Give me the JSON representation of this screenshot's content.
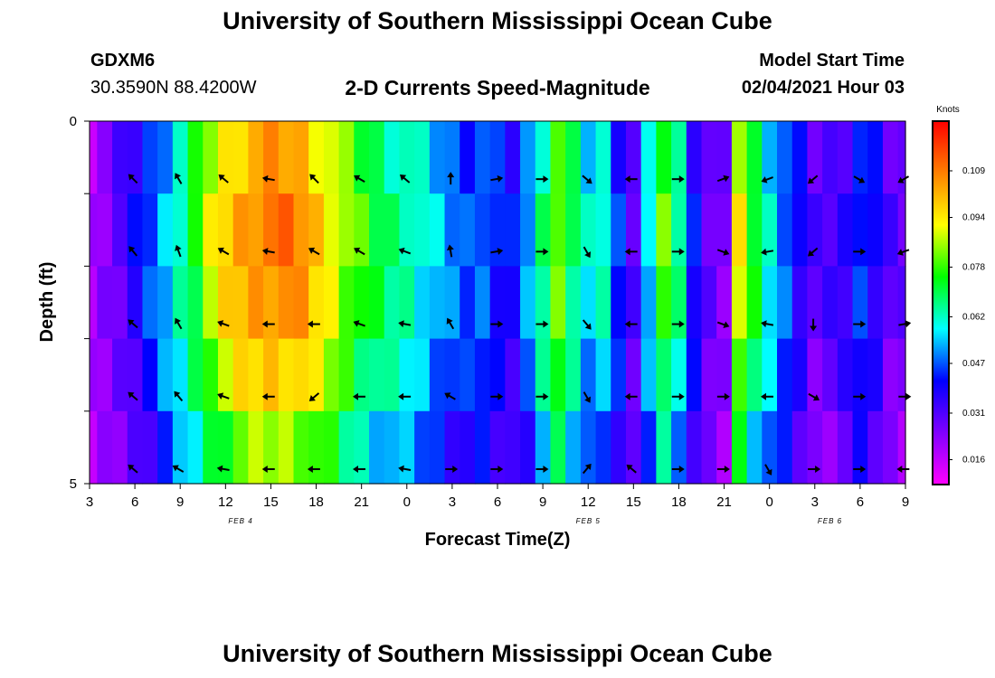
{
  "header": {
    "title": "University of Southern Mississippi Ocean Cube",
    "station": "GDXM6",
    "coords": "30.3590N 88.4200W",
    "subtitle": "2-D Currents Speed-Magnitude",
    "model_label": "Model Start Time",
    "model_time": "02/04/2021 Hour 03"
  },
  "footer": {
    "title": "University of Southern Mississippi Ocean Cube"
  },
  "colors": {
    "scale": [
      "#ff00ff",
      "#8000ff",
      "#0000ff",
      "#00ffff",
      "#00ff00",
      "#ffff00",
      "#ff8000",
      "#ff0000"
    ]
  },
  "chart_data": {
    "type": "heatmap",
    "title": "2-D Currents Speed-Magnitude",
    "xlabel": "Forecast Time(Z)",
    "ylabel": "Depth (ft)",
    "y_tick_labels": [
      "0",
      "5"
    ],
    "ylim": [
      0,
      5
    ],
    "x_tick_labels": [
      "3",
      "6",
      "9",
      "12",
      "15",
      "18",
      "21",
      "0",
      "3",
      "6",
      "9",
      "12",
      "15",
      "18",
      "21",
      "0",
      "3",
      "6",
      "9"
    ],
    "x_tick_hours": [
      0,
      3,
      6,
      9,
      12,
      15,
      18,
      21,
      24,
      27,
      30,
      33,
      36,
      39,
      42,
      45,
      48,
      51,
      54
    ],
    "date_labels": [
      {
        "text": "FEB 4",
        "hour": 10
      },
      {
        "text": "FEB 5",
        "hour": 33
      },
      {
        "text": "FEB 6",
        "hour": 49
      }
    ],
    "colorbar": {
      "units": "Knots",
      "min": 0.008,
      "max": 0.125,
      "tick_values": [
        0.016,
        0.031,
        0.047,
        0.062,
        0.078,
        0.094,
        0.109
      ],
      "tick_labels": [
        "0.016",
        "0.031",
        "0.047",
        "0.062",
        "0.078",
        "0.094",
        "0.109"
      ]
    },
    "speed_profile": {
      "hours": [
        0,
        1,
        2,
        3,
        4,
        5,
        6,
        7,
        8,
        9,
        10,
        11,
        12,
        13,
        14,
        15,
        16,
        17,
        18,
        19,
        20,
        21,
        22,
        23,
        24,
        25,
        26,
        27,
        28,
        29,
        30,
        31,
        32,
        33,
        34,
        35,
        36,
        37,
        38,
        39,
        40,
        41,
        42,
        43,
        44,
        45,
        46,
        47,
        48,
        49,
        50,
        51,
        52,
        53,
        54
      ],
      "values": [
        0.02,
        0.025,
        0.031,
        0.038,
        0.046,
        0.055,
        0.065,
        0.076,
        0.09,
        0.098,
        0.104,
        0.108,
        0.11,
        0.11,
        0.107,
        0.1,
        0.094,
        0.085,
        0.078,
        0.072,
        0.068,
        0.066,
        0.061,
        0.055,
        0.05,
        0.047,
        0.05,
        0.044,
        0.04,
        0.052,
        0.068,
        0.084,
        0.07,
        0.058,
        0.062,
        0.045,
        0.032,
        0.058,
        0.08,
        0.066,
        0.042,
        0.03,
        0.026,
        0.092,
        0.074,
        0.06,
        0.05,
        0.04,
        0.03,
        0.032,
        0.036,
        0.046,
        0.04,
        0.03,
        0.028
      ]
    },
    "depth_factors": [
      0.95,
      1.0,
      0.97,
      0.9,
      0.78
    ],
    "vector_depths": [
      1,
      2,
      3,
      4,
      5
    ],
    "vector_hours": [
      3,
      6,
      9,
      12,
      15,
      18,
      21,
      24,
      27,
      30,
      33,
      36,
      39,
      42,
      45,
      48,
      51,
      54
    ],
    "vector_directions_deg": [
      [
        135,
        120,
        140,
        170,
        135,
        150,
        140,
        90,
        10,
        0,
        320,
        180,
        0,
        20,
        200,
        220,
        330,
        210
      ],
      [
        130,
        110,
        150,
        170,
        150,
        150,
        160,
        100,
        10,
        0,
        300,
        180,
        0,
        340,
        190,
        220,
        0,
        200
      ],
      [
        140,
        120,
        160,
        180,
        180,
        160,
        170,
        120,
        0,
        0,
        310,
        180,
        0,
        340,
        170,
        270,
        0,
        10
      ],
      [
        140,
        130,
        160,
        180,
        220,
        180,
        180,
        150,
        0,
        0,
        300,
        180,
        0,
        0,
        180,
        330,
        0,
        0
      ],
      [
        140,
        150,
        170,
        180,
        180,
        180,
        170,
        0,
        0,
        0,
        50,
        140,
        0,
        0,
        300,
        0,
        0,
        180
      ]
    ]
  }
}
